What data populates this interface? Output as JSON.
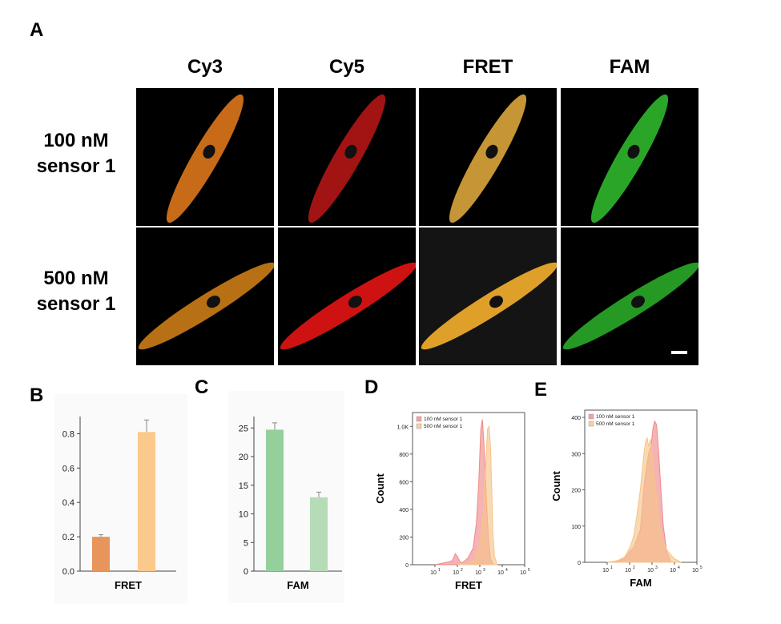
{
  "panels": {
    "A": "A",
    "B": "B",
    "C": "C",
    "D": "D",
    "E": "E"
  },
  "panel_a": {
    "columns": [
      "Cy3",
      "Cy5",
      "FRET",
      "FAM"
    ],
    "rows": [
      {
        "line1": "100 nM",
        "line2": "sensor 1"
      },
      {
        "line1": "500 nM",
        "line2": "sensor 1"
      }
    ],
    "colors": {
      "row1": [
        "#d9741b",
        "#b01616",
        "#d7a23a",
        "#2fb32b"
      ],
      "row2": [
        "#c87a17",
        "#e01414",
        "#f1ad2c",
        "#28a626"
      ]
    }
  },
  "chart_data": [
    {
      "panel": "B",
      "type": "bar",
      "categories": [
        "",
        ""
      ],
      "values": [
        0.2,
        0.81
      ],
      "errors": [
        0.012,
        0.07
      ],
      "colors": [
        "#e8955c",
        "#fbc98c"
      ],
      "xlabel": "FRET",
      "ylabel": "",
      "ylim": [
        0,
        0.9
      ],
      "yticks": [
        "0.0",
        "0.2",
        "0.4",
        "0.6",
        "0.8"
      ],
      "ytick_values": [
        0,
        0.2,
        0.4,
        0.6,
        0.8
      ]
    },
    {
      "panel": "C",
      "type": "bar",
      "categories": [
        "",
        ""
      ],
      "values": [
        24.7,
        12.9
      ],
      "errors": [
        1.2,
        0.9
      ],
      "colors": [
        "#94cf9c",
        "#b5dcb6"
      ],
      "xlabel": "FAM",
      "ylabel": "",
      "ylim": [
        0,
        27
      ],
      "yticks": [
        "0",
        "5",
        "10",
        "15",
        "20",
        "25"
      ],
      "ytick_values": [
        0,
        5,
        10,
        15,
        20,
        25
      ]
    },
    {
      "panel": "D",
      "type": "area",
      "xlabel": "FRET",
      "ylabel": "Count",
      "xscale": "log",
      "xlim": [
        1,
        100000
      ],
      "ylim": [
        0,
        1100
      ],
      "yticks": [
        "0",
        "200",
        "400",
        "600",
        "800",
        "1.0K"
      ],
      "ytick_values": [
        0,
        200,
        400,
        600,
        800,
        1000
      ],
      "xticks": [
        "10",
        "10",
        "10",
        "10",
        "10"
      ],
      "xtick_exp": [
        "1",
        "2",
        "3",
        "4",
        "5"
      ],
      "xtick_values": [
        10,
        100,
        1000,
        10000,
        100000
      ],
      "legend_placement": "top-left",
      "series": [
        {
          "name": "100 nM sensor 1",
          "color": "#f08a8a",
          "x": [
            10,
            20,
            40,
            60,
            80,
            100,
            130,
            160,
            200,
            300,
            500,
            700,
            900,
            1100,
            1300,
            1500,
            1700,
            2000,
            2400,
            3000,
            4000
          ],
          "y": [
            0,
            10,
            20,
            30,
            80,
            60,
            20,
            15,
            25,
            50,
            120,
            300,
            600,
            980,
            1050,
            900,
            700,
            450,
            200,
            40,
            0
          ]
        },
        {
          "name": "500 nM sensor 1",
          "color": "#f5c58a",
          "x": [
            100,
            300,
            600,
            1000,
            1400,
            1800,
            2200,
            2600,
            3000,
            3400,
            3800,
            4500,
            6000
          ],
          "y": [
            0,
            10,
            40,
            150,
            350,
            700,
            980,
            1000,
            850,
            550,
            250,
            60,
            0
          ]
        }
      ]
    },
    {
      "panel": "E",
      "type": "area",
      "xlabel": "FAM",
      "ylabel": "Count",
      "xscale": "log",
      "xlim": [
        1,
        100000
      ],
      "ylim": [
        0,
        420
      ],
      "yticks": [
        "0",
        "100",
        "200",
        "300",
        "400"
      ],
      "ytick_values": [
        0,
        100,
        200,
        300,
        400
      ],
      "xticks": [
        "10",
        "10",
        "10",
        "10",
        "10"
      ],
      "xtick_exp": [
        "1",
        "2",
        "3",
        "4",
        "5"
      ],
      "xtick_values": [
        10,
        100,
        1000,
        10000,
        100000
      ],
      "legend_placement": "top-left",
      "series": [
        {
          "name": "100 nM sensor 1",
          "color": "#f08a8a",
          "x": [
            20,
            60,
            100,
            150,
            200,
            300,
            400,
            500,
            700,
            900,
            1100,
            1300,
            1600,
            2000,
            2500,
            3200,
            4500,
            7000
          ],
          "y": [
            0,
            10,
            30,
            40,
            60,
            90,
            180,
            240,
            300,
            320,
            370,
            390,
            380,
            300,
            200,
            100,
            30,
            0
          ]
        },
        {
          "name": "500 nM sensor 1",
          "color": "#f5c58a",
          "x": [
            10,
            30,
            60,
            100,
            150,
            200,
            300,
            400,
            500,
            600,
            700,
            850,
            1000,
            1300,
            1700,
            2200,
            3000,
            5000,
            10000,
            20000
          ],
          "y": [
            0,
            5,
            15,
            40,
            70,
            120,
            200,
            280,
            330,
            345,
            320,
            340,
            300,
            230,
            160,
            100,
            60,
            30,
            10,
            0
          ]
        }
      ]
    }
  ]
}
